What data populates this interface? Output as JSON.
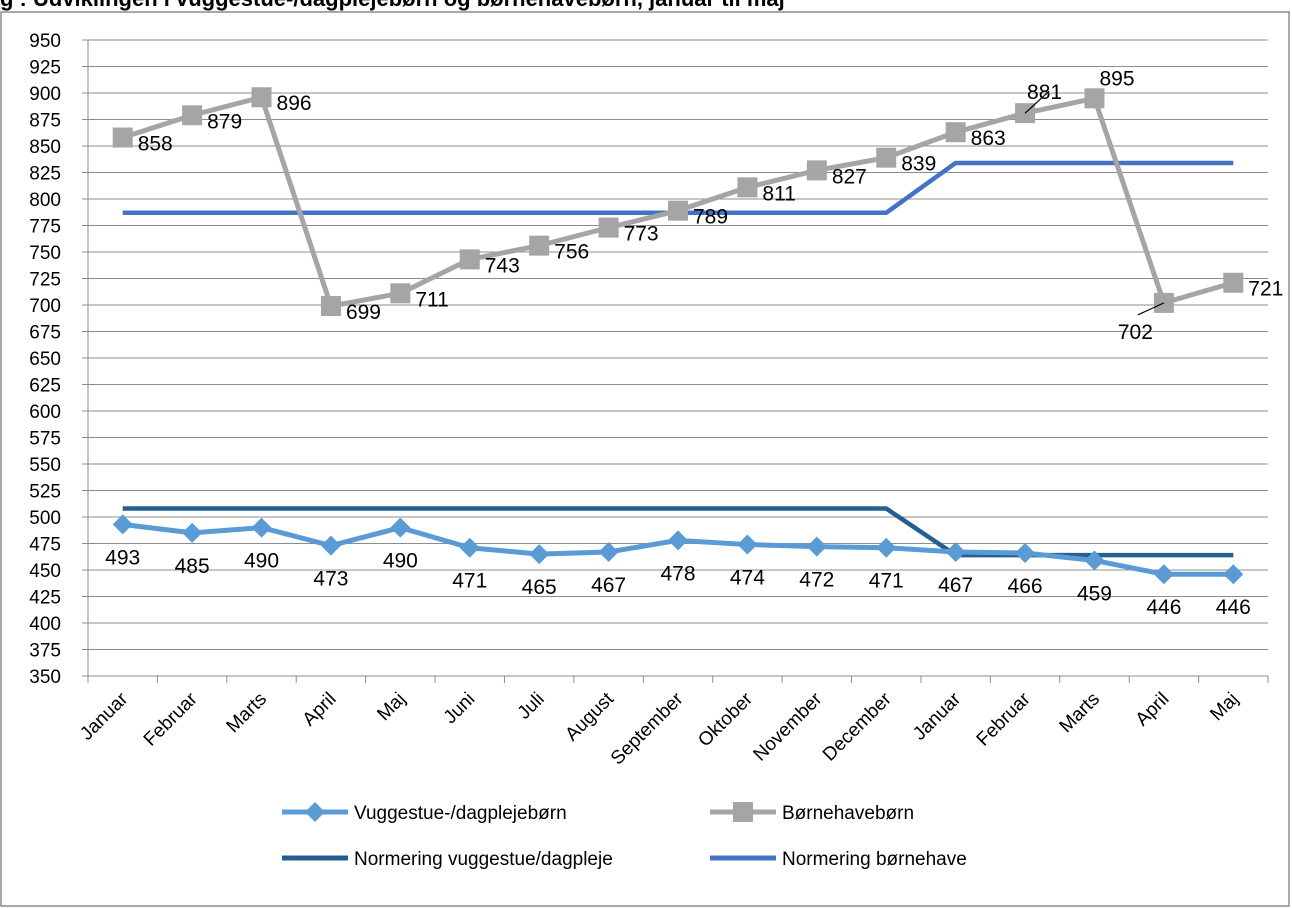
{
  "chart_data": {
    "type": "line",
    "title_partial": "g      : Udviklingen i vuggestue-/dagplejebørn og børnehavebørn, januar til maj",
    "categories": [
      "Januar",
      "Februar",
      "Marts",
      "April",
      "Maj",
      "Juni",
      "Juli",
      "August",
      "September",
      "Oktober",
      "November",
      "December",
      "Januar",
      "Februar",
      "Marts",
      "April",
      "Maj"
    ],
    "ylim": [
      350,
      950
    ],
    "ytick_step": 25,
    "grid": true,
    "legend_position": "bottom",
    "series": [
      {
        "name": "Vuggestue-/dagplejebørn",
        "color": "#5B9BD5",
        "marker": "diamond",
        "values": [
          493,
          485,
          490,
          473,
          490,
          471,
          465,
          467,
          478,
          474,
          472,
          471,
          467,
          466,
          459,
          446,
          446
        ],
        "labels": [
          "493",
          "485",
          "490",
          "473",
          "490",
          "471",
          "465",
          "467",
          "478",
          "474",
          "472",
          "471",
          "467",
          "466",
          "459",
          "446",
          "446"
        ]
      },
      {
        "name": "Børnehavebørn",
        "color": "#A5A5A5",
        "marker": "square",
        "values": [
          858,
          879,
          896,
          699,
          711,
          743,
          756,
          773,
          789,
          811,
          827,
          839,
          863,
          881,
          895,
          702,
          721
        ],
        "labels": [
          "858",
          "879",
          "896",
          "699",
          "711",
          "743",
          "756",
          "773",
          "789",
          "811",
          "827",
          "839",
          "863",
          "881",
          "895",
          "702",
          "721"
        ]
      },
      {
        "name": "Normering vuggestue/dagpleje",
        "color": "#255E91",
        "marker": "none",
        "values": [
          508,
          508,
          508,
          508,
          508,
          508,
          508,
          508,
          508,
          508,
          508,
          508,
          464,
          464,
          464,
          464,
          464
        ]
      },
      {
        "name": "Normering børnehave",
        "color": "#4472C4",
        "marker": "none",
        "values": [
          787,
          787,
          787,
          787,
          787,
          787,
          787,
          787,
          787,
          787,
          787,
          787,
          834,
          834,
          834,
          834,
          834
        ]
      }
    ]
  }
}
